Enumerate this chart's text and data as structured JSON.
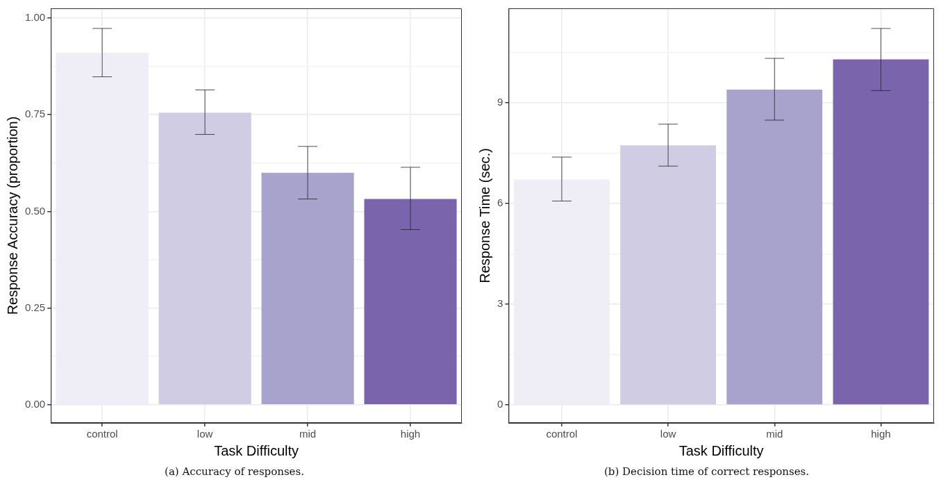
{
  "chart_data": [
    {
      "type": "bar",
      "xlabel": "Task Difficulty",
      "ylabel": "Response Accuracy (proportion)",
      "categories": [
        "control",
        "low",
        "mid",
        "high"
      ],
      "values": [
        0.91,
        0.755,
        0.6,
        0.532
      ],
      "errors": [
        [
          0.848,
          0.973
        ],
        [
          0.699,
          0.814
        ],
        [
          0.532,
          0.668
        ],
        [
          0.453,
          0.614
        ]
      ],
      "colors": [
        "#efedf5",
        "#cfcce4",
        "#a7a3cd",
        "#7a65ad"
      ],
      "ylim": [
        -0.047,
        1.025
      ],
      "yticks": [
        {
          "value": 0,
          "label": "0.00"
        },
        {
          "value": 0.125,
          "label": null
        },
        {
          "value": 0.25,
          "label": "0.25"
        },
        {
          "value": 0.375,
          "label": null
        },
        {
          "value": 0.5,
          "label": "0.50"
        },
        {
          "value": 0.625,
          "label": null
        },
        {
          "value": 0.75,
          "label": "0.75"
        },
        {
          "value": 0.875,
          "label": null
        },
        {
          "value": 1,
          "label": "1.00"
        }
      ],
      "grid": true,
      "legend": false,
      "annotations": [
        "(a) Accuracy of responses."
      ]
    },
    {
      "type": "bar",
      "xlabel": "Task Difficulty",
      "ylabel": "Response Time (sec.)",
      "categories": [
        "control",
        "low",
        "mid",
        "high"
      ],
      "values": [
        6.71,
        7.73,
        9.39,
        10.29
      ],
      "errors": [
        [
          6.07,
          7.38
        ],
        [
          7.11,
          8.36
        ],
        [
          8.48,
          10.32
        ],
        [
          9.36,
          11.21
        ]
      ],
      "colors": [
        "#efedf5",
        "#cfcce4",
        "#a7a3cd",
        "#7a65ad"
      ],
      "ylim": [
        -0.54,
        11.81
      ],
      "yticks": [
        0,
        {
          "value": 1.5,
          "label": null
        },
        3,
        {
          "value": 4.5,
          "label": null
        },
        6,
        {
          "value": 7.5,
          "label": null
        },
        9,
        {
          "value": 10.5,
          "label": null
        }
      ],
      "grid": true,
      "legend": false,
      "annotations": [
        "(b) Decision time of correct responses."
      ]
    }
  ]
}
